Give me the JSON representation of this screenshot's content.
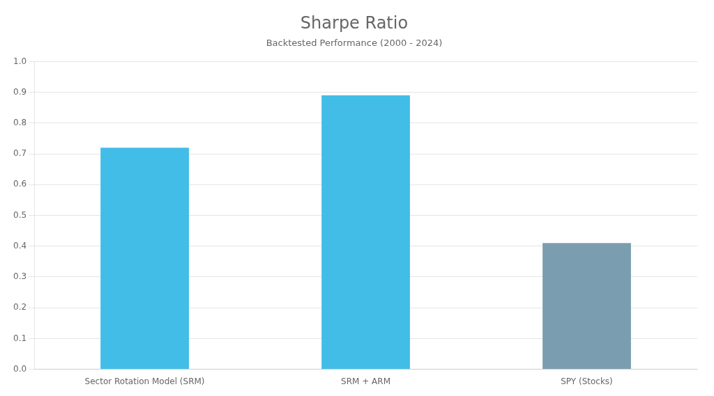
{
  "chart_data": {
    "type": "bar",
    "title": "Sharpe Ratio",
    "subtitle": "Backtested Performance (2000 - 2024)",
    "categories": [
      "Sector Rotation Model (SRM)",
      "SRM + ARM",
      "SPY (Stocks)"
    ],
    "values": [
      0.72,
      0.89,
      0.41
    ],
    "colors": [
      "#42BDE8",
      "#42BDE8",
      "#7A9EAF"
    ],
    "ylim": [
      0,
      1.0
    ],
    "yticks": [
      {
        "value": 0,
        "label": "0.0"
      },
      0.1,
      0.2,
      0.3,
      0.4,
      0.5,
      0.6,
      0.7,
      0.8,
      0.9,
      {
        "value": 1.0,
        "label": "1.0"
      }
    ],
    "grid": true
  }
}
